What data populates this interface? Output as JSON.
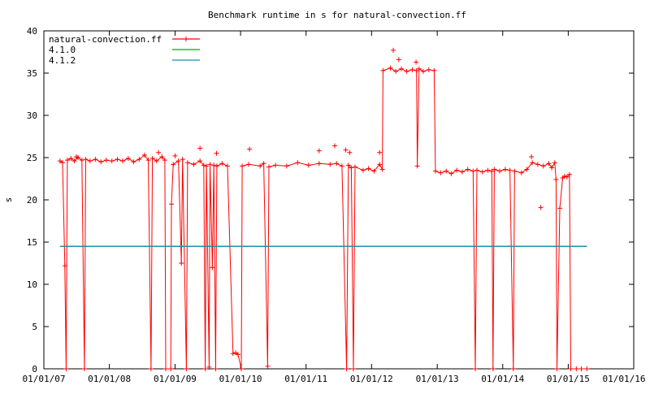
{
  "chart_data": {
    "type": "line",
    "title": "Benchmark runtime in s for natural-convection.ff",
    "xlabel": "",
    "ylabel": "s",
    "ylim": [
      0,
      40
    ],
    "y_ticks": [
      0,
      5,
      10,
      15,
      20,
      25,
      30,
      35,
      40
    ],
    "x_axis": "date",
    "xlim": [
      "2007-01-01",
      "2016-01-01"
    ],
    "x_ticks": [
      "01/01/07",
      "01/01/08",
      "01/01/09",
      "01/01/10",
      "01/01/11",
      "01/01/12",
      "01/01/13",
      "01/01/14",
      "01/01/15",
      "01/01/16"
    ],
    "grid": false,
    "legend_position": "top-left",
    "series": [
      {
        "name": "natural-convection.ff",
        "color": "#ff0000",
        "style": "linespoints",
        "marker": "plus",
        "points": [
          [
            "2007-04-01",
            24.6
          ],
          [
            "2007-04-15",
            24.4
          ],
          [
            "2007-04-28",
            12.2
          ],
          [
            "2007-05-05",
            0
          ],
          [
            "2007-05-12",
            24.7
          ],
          [
            "2007-06-01",
            24.9
          ],
          [
            "2007-06-20",
            24.6
          ],
          [
            "2007-07-10",
            25.0
          ],
          [
            "2007-08-01",
            24.7
          ],
          [
            "2007-08-15",
            0
          ],
          [
            "2007-08-22",
            24.8
          ],
          [
            "2007-09-15",
            24.6
          ],
          [
            "2007-10-15",
            24.8
          ],
          [
            "2007-11-15",
            24.5
          ],
          [
            "2007-12-15",
            24.7
          ],
          [
            "2008-01-15",
            24.6
          ],
          [
            "2008-02-15",
            24.8
          ],
          [
            "2008-03-15",
            24.6
          ],
          [
            "2008-04-15",
            24.9
          ],
          [
            "2008-05-15",
            24.5
          ],
          [
            "2008-06-15",
            24.8
          ],
          [
            "2008-07-15",
            25.3
          ],
          [
            "2008-08-05",
            24.7
          ],
          [
            "2008-08-20",
            0
          ],
          [
            "2008-08-28",
            24.9
          ],
          [
            "2008-09-20",
            24.6
          ],
          [
            "2008-10-20",
            25.1
          ],
          [
            "2008-11-05",
            24.7
          ],
          [
            "2008-11-10",
            0
          ],
          [
            "2008-12-08",
            0
          ],
          [
            "2008-12-12",
            19.5
          ],
          [
            "2008-12-22",
            24.2
          ],
          [
            "2009-01-20",
            24.6
          ],
          [
            "2009-02-05",
            12.5
          ],
          [
            "2009-02-12",
            24.8
          ],
          [
            "2009-03-05",
            0
          ],
          [
            "2009-03-12",
            24.4
          ],
          [
            "2009-04-15",
            24.2
          ],
          [
            "2009-05-20",
            24.6
          ],
          [
            "2009-06-10",
            24.1
          ],
          [
            "2009-06-18",
            0
          ],
          [
            "2009-06-25",
            24.0
          ],
          [
            "2009-07-10",
            0.2
          ],
          [
            "2009-07-15",
            24.2
          ],
          [
            "2009-07-28",
            12.0
          ],
          [
            "2009-08-05",
            24.1
          ],
          [
            "2009-08-15",
            0
          ],
          [
            "2009-08-22",
            24.0
          ],
          [
            "2009-09-20",
            24.3
          ],
          [
            "2009-10-20",
            24.0
          ],
          [
            "2009-11-20",
            1.8
          ],
          [
            "2009-12-05",
            1.9
          ],
          [
            "2009-12-18",
            1.7
          ],
          [
            "2010-01-05",
            0
          ],
          [
            "2010-01-10",
            24.0
          ],
          [
            "2010-02-15",
            24.2
          ],
          [
            "2010-04-20",
            24.0
          ],
          [
            "2010-05-10",
            24.3
          ],
          [
            "2010-06-01",
            0.3
          ],
          [
            "2010-06-08",
            23.9
          ],
          [
            "2010-07-15",
            24.1
          ],
          [
            "2010-09-15",
            24.0
          ],
          [
            "2010-11-15",
            24.4
          ],
          [
            "2011-01-15",
            24.1
          ],
          [
            "2011-03-15",
            24.3
          ],
          [
            "2011-05-15",
            24.2
          ],
          [
            "2011-06-20",
            24.3
          ],
          [
            "2011-07-20",
            24.0
          ],
          [
            "2011-08-15",
            0
          ],
          [
            "2011-08-25",
            24.1
          ],
          [
            "2011-09-10",
            23.8
          ],
          [
            "2011-09-22",
            0
          ],
          [
            "2011-10-01",
            23.9
          ],
          [
            "2011-11-15",
            23.5
          ],
          [
            "2011-12-15",
            23.7
          ],
          [
            "2012-01-15",
            23.4
          ],
          [
            "2012-02-15",
            24.2
          ],
          [
            "2012-03-01",
            23.6
          ],
          [
            "2012-03-05",
            35.3
          ],
          [
            "2012-04-15",
            35.6
          ],
          [
            "2012-05-15",
            35.2
          ],
          [
            "2012-06-15",
            35.5
          ],
          [
            "2012-07-15",
            35.2
          ],
          [
            "2012-08-15",
            35.4
          ],
          [
            "2012-09-08",
            35.3
          ],
          [
            "2012-09-12",
            24.0
          ],
          [
            "2012-09-22",
            35.5
          ],
          [
            "2012-10-15",
            35.2
          ],
          [
            "2012-11-15",
            35.4
          ],
          [
            "2012-12-15",
            35.3
          ],
          [
            "2012-12-22",
            23.4
          ],
          [
            "2013-01-20",
            23.2
          ],
          [
            "2013-02-20",
            23.4
          ],
          [
            "2013-03-20",
            23.1
          ],
          [
            "2013-04-20",
            23.5
          ],
          [
            "2013-05-20",
            23.3
          ],
          [
            "2013-06-20",
            23.6
          ],
          [
            "2013-07-20",
            23.4
          ],
          [
            "2013-08-01",
            0
          ],
          [
            "2013-08-10",
            23.5
          ],
          [
            "2013-09-10",
            23.3
          ],
          [
            "2013-10-10",
            23.5
          ],
          [
            "2013-11-01",
            23.4
          ],
          [
            "2013-11-08",
            0
          ],
          [
            "2013-11-15",
            23.6
          ],
          [
            "2013-12-15",
            23.4
          ],
          [
            "2014-01-15",
            23.6
          ],
          [
            "2014-02-10",
            23.5
          ],
          [
            "2014-03-01",
            0
          ],
          [
            "2014-03-08",
            23.4
          ],
          [
            "2014-04-15",
            23.2
          ],
          [
            "2014-05-15",
            23.6
          ],
          [
            "2014-06-15",
            24.4
          ],
          [
            "2014-07-15",
            24.2
          ],
          [
            "2014-08-15",
            24.0
          ],
          [
            "2014-09-15",
            24.3
          ],
          [
            "2014-10-01",
            23.8
          ],
          [
            "2014-10-18",
            24.4
          ],
          [
            "2014-10-25",
            22.4
          ],
          [
            "2014-10-30",
            0
          ],
          [
            "2014-11-15",
            19.0
          ],
          [
            "2014-12-01",
            22.6
          ],
          [
            "2014-12-12",
            22.8
          ],
          [
            "2014-12-25",
            22.7
          ],
          [
            "2015-01-08",
            23.0
          ],
          [
            "2015-01-15",
            0
          ],
          [
            "2015-02-15",
            0
          ],
          [
            "2015-03-15",
            0
          ],
          [
            "2015-04-15",
            0
          ]
        ],
        "spikes": [
          [
            "2008-10-01",
            25.6
          ],
          [
            "2009-05-20",
            26.1
          ],
          [
            "2009-08-20",
            25.5
          ],
          [
            "2010-02-20",
            26.0
          ],
          [
            "2011-03-15",
            25.8
          ],
          [
            "2011-06-10",
            26.4
          ],
          [
            "2011-08-10",
            25.9
          ],
          [
            "2011-09-01",
            25.6
          ],
          [
            "2012-02-15",
            25.6
          ],
          [
            "2012-05-01",
            37.7
          ],
          [
            "2012-06-01",
            36.6
          ],
          [
            "2012-09-05",
            36.3
          ],
          [
            "2014-06-10",
            25.1
          ],
          [
            "2014-08-01",
            19.1
          ],
          [
            "2009-01-01",
            25.2
          ],
          [
            "2007-07-01",
            25.1
          ]
        ]
      },
      {
        "name": "4.1.0",
        "color": "#00aa00",
        "style": "lines",
        "points": [
          [
            "2007-04-01",
            14.5
          ],
          [
            "2015-04-15",
            14.5
          ]
        ]
      },
      {
        "name": "4.1.2",
        "color": "#1a8cb3",
        "style": "lines",
        "points": [
          [
            "2007-04-01",
            14.5
          ],
          [
            "2015-04-15",
            14.5
          ]
        ]
      }
    ]
  }
}
